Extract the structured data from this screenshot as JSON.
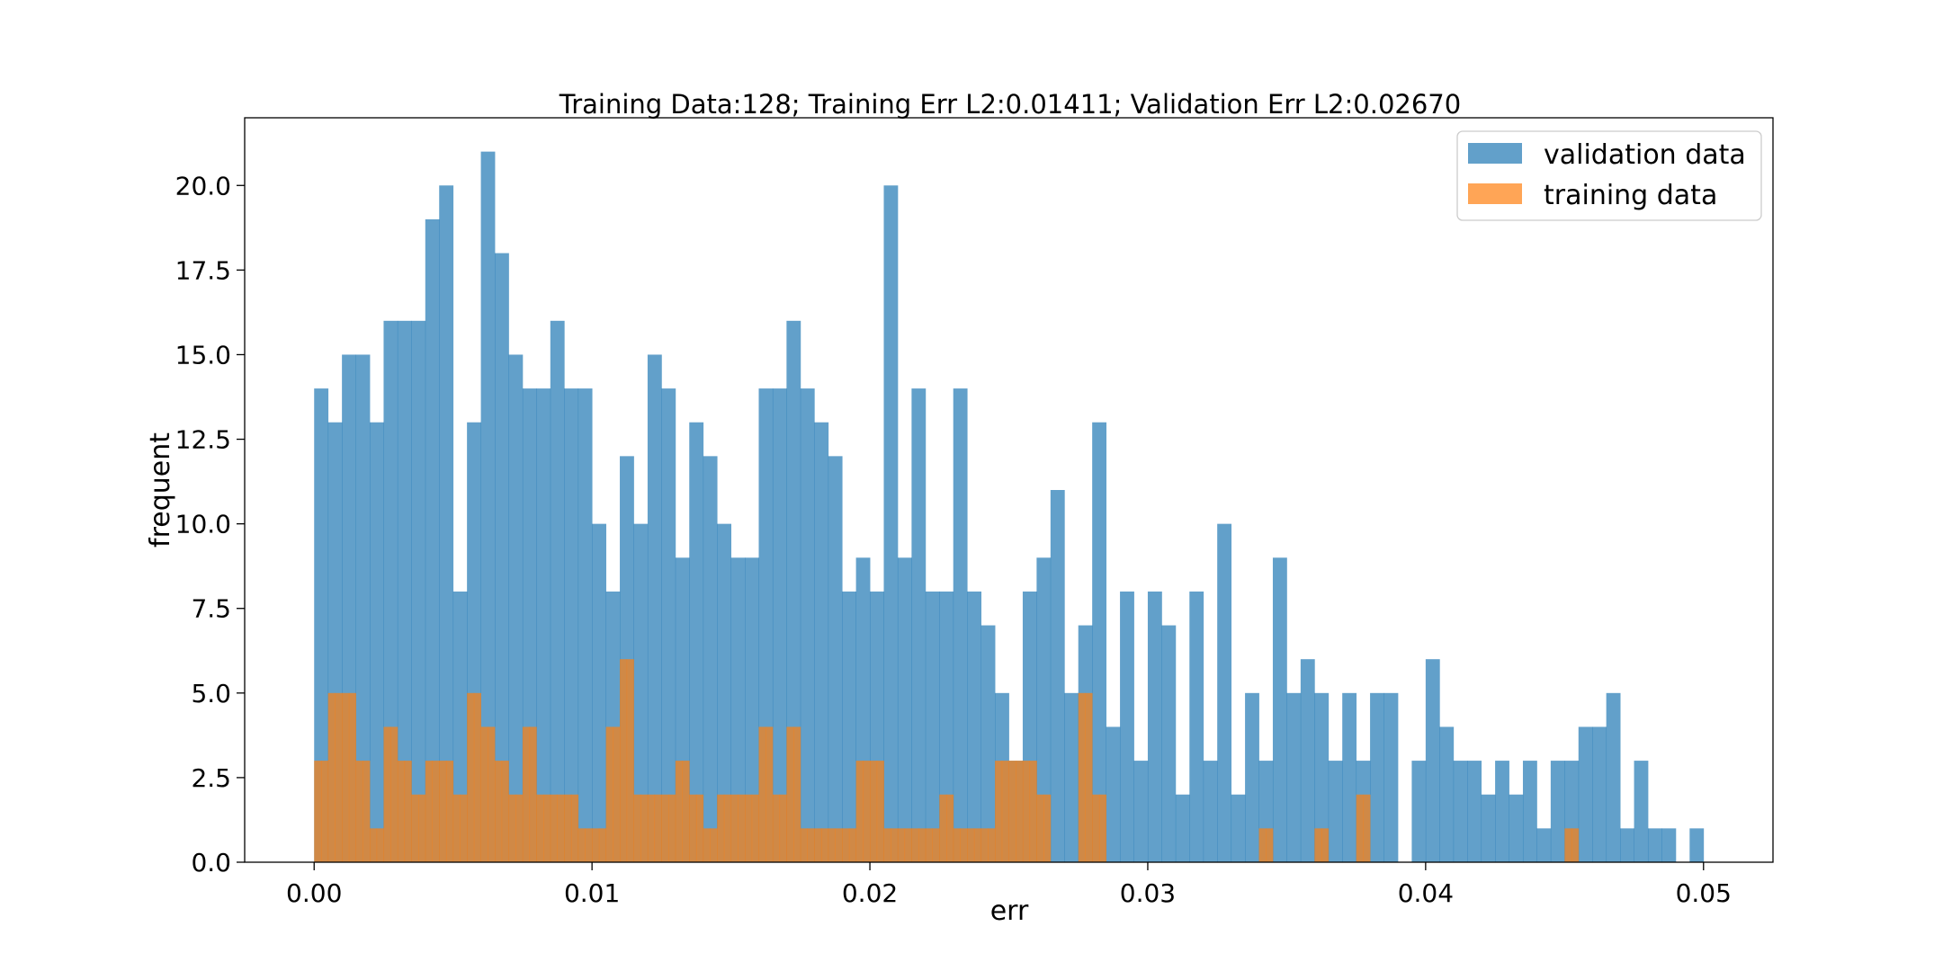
{
  "chart_data": {
    "type": "bar",
    "title": "Training Data:128; Training Err L2:0.01411; Validation Err L2:0.02670",
    "xlabel": "err",
    "ylabel": "frequent",
    "xlim": [
      -0.0025,
      0.0525
    ],
    "ylim": [
      0,
      22
    ],
    "x_ticks": [
      0.0,
      0.01,
      0.02,
      0.03,
      0.04,
      0.05
    ],
    "x_tick_labels": [
      "0.00",
      "0.01",
      "0.02",
      "0.03",
      "0.04",
      "0.05"
    ],
    "y_ticks": [
      0.0,
      2.5,
      5.0,
      7.5,
      10.0,
      12.5,
      15.0,
      17.5,
      20.0
    ],
    "y_tick_labels": [
      "0.0",
      "2.5",
      "5.0",
      "7.5",
      "10.0",
      "12.5",
      "15.0",
      "17.5",
      "20.0"
    ],
    "grid": false,
    "legend_position": "upper-right",
    "series": [
      {
        "name": "validation data",
        "color": "#1f77b4",
        "opacity": 0.7,
        "bin_start": 0.0,
        "bin_width": 0.0005,
        "values": [
          14,
          13,
          15,
          15,
          13,
          16,
          16,
          16,
          19,
          20,
          8,
          13,
          21,
          18,
          15,
          14,
          14,
          16,
          14,
          14,
          10,
          8,
          12,
          10,
          15,
          14,
          9,
          13,
          12,
          10,
          9,
          9,
          14,
          14,
          16,
          14,
          13,
          12,
          8,
          9,
          8,
          20,
          9,
          14,
          8,
          8,
          14,
          8,
          7,
          5,
          3,
          8,
          9,
          11,
          5,
          7,
          13,
          4,
          8,
          3,
          8,
          7,
          2,
          8,
          3,
          10,
          2,
          5,
          3,
          9,
          5,
          6,
          5,
          3,
          5,
          3,
          5,
          5,
          0,
          3,
          6,
          4,
          3,
          3,
          2,
          3,
          2,
          3,
          1,
          3,
          3,
          4,
          4,
          5,
          1,
          3,
          1,
          1,
          0,
          1
        ]
      },
      {
        "name": "training data",
        "color": "#ff7f0e",
        "opacity": 0.7,
        "bin_start": 0.0,
        "bin_width": 0.00025,
        "values": [
          3,
          3,
          5,
          5,
          5,
          5,
          3,
          3,
          1,
          1,
          4,
          4,
          3,
          3,
          2,
          2,
          3,
          3,
          3,
          3,
          2,
          2,
          5,
          5,
          4,
          4,
          3,
          3,
          2,
          2,
          4,
          4,
          2,
          2,
          2,
          2,
          2,
          2,
          1,
          1,
          1,
          1,
          4,
          4,
          6,
          6,
          2,
          2,
          2,
          2,
          2,
          2,
          3,
          3,
          2,
          2,
          1,
          1,
          2,
          2,
          2,
          2,
          2,
          2,
          4,
          4,
          2,
          2,
          4,
          4,
          1,
          1,
          1,
          1,
          1,
          1,
          1,
          1,
          3,
          3,
          3,
          3,
          1,
          1,
          1,
          1,
          1,
          1,
          1,
          1,
          2,
          2,
          1,
          1,
          1,
          1,
          1,
          1,
          3,
          3,
          3,
          3,
          3,
          3,
          2,
          2,
          0,
          0,
          0,
          0,
          5,
          5,
          2,
          2,
          0,
          0,
          0,
          0,
          0,
          0,
          0,
          0,
          0,
          0,
          0,
          0,
          0,
          0,
          0,
          0,
          0,
          0,
          0,
          0,
          0,
          0,
          1,
          1,
          0,
          0,
          0,
          0,
          0,
          0,
          1,
          1,
          0,
          0,
          0,
          0,
          2,
          2,
          0,
          0,
          0,
          0,
          0,
          0,
          0,
          0,
          0,
          0,
          0,
          0,
          0,
          0,
          0,
          0,
          0,
          0,
          0,
          0,
          0,
          0,
          0,
          0,
          0,
          0,
          0,
          0,
          1,
          1
        ]
      }
    ]
  }
}
